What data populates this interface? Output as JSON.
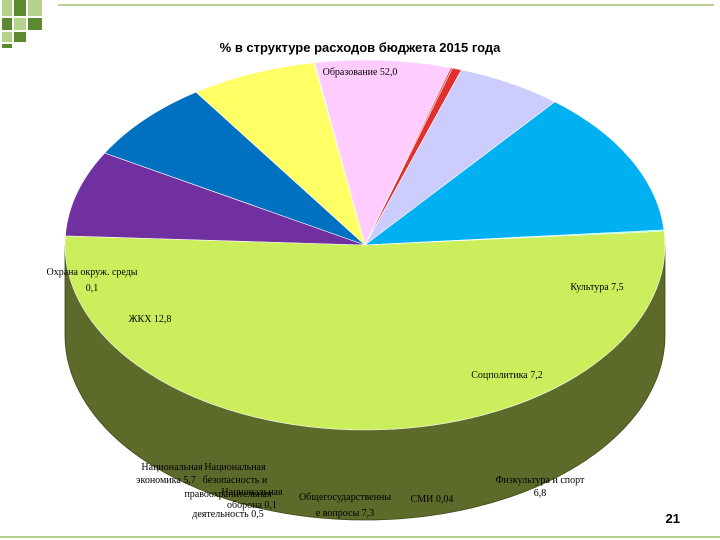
{
  "chart_data": {
    "type": "pie",
    "title": "% в структуре расходов бюджета 2015 года",
    "slices": [
      {
        "label": "Образование",
        "value": 52.0,
        "value_text": "52,0",
        "color": "#ccee5c"
      },
      {
        "label": "Культура",
        "value": 7.5,
        "value_text": "7,5",
        "color": "#7030a0"
      },
      {
        "label": "Соцполитика",
        "value": 7.2,
        "value_text": "7,2",
        "color": "#0070c0"
      },
      {
        "label": "Физкультура и спорт",
        "value": 6.8,
        "value_text": "6,8",
        "color": "#ffff66"
      },
      {
        "label": "СМИ",
        "value": 0.04,
        "value_text": "0,04",
        "color": "#f5d5f0"
      },
      {
        "label": "Общегосударственные вопросы",
        "value": 7.3,
        "value_text": "7,3",
        "color": "#ffccff"
      },
      {
        "label": "Национальная оборона",
        "value": 0.1,
        "value_text": "0,1",
        "color": "#ff3333"
      },
      {
        "label": "Национальная безопасность и правоохранительная деятельность",
        "value": 0.5,
        "value_text": "0,5",
        "color": "#e03030"
      },
      {
        "label": "Национальная экономика",
        "value": 5.7,
        "value_text": "5,7",
        "color": "#ccccff"
      },
      {
        "label": "ЖКХ",
        "value": 12.8,
        "value_text": "12,8",
        "color": "#00b0f0"
      },
      {
        "label": "Охрана окруж. среды",
        "value": 0.1,
        "value_text": "0,1",
        "color": "#66ffcc"
      }
    ],
    "labels": {
      "education": "Образование 52,0",
      "culture": "Культура 7,5",
      "social": "Соцполитика 7,2",
      "sport_1": "Физкультура и спорт",
      "sport_2": "6,8",
      "media": "СМИ 0,04",
      "general_1": "Общегосударственны",
      "general_2": "е вопросы 7,3",
      "defense_1": "Национальная",
      "defense_2": "оборона 0,1",
      "security_1": "Национальная",
      "security_2": "безопасность и",
      "security_3": "правоохранительная",
      "security_4": "деятельность 0,5",
      "economy_1": "Национальная",
      "economy_2": "экономика 5,7",
      "housing": "ЖКХ 12,8",
      "ecology_1": "Охрана окруж. среды",
      "ecology_2": "0,1"
    }
  },
  "slide": {
    "page_number": "21"
  }
}
